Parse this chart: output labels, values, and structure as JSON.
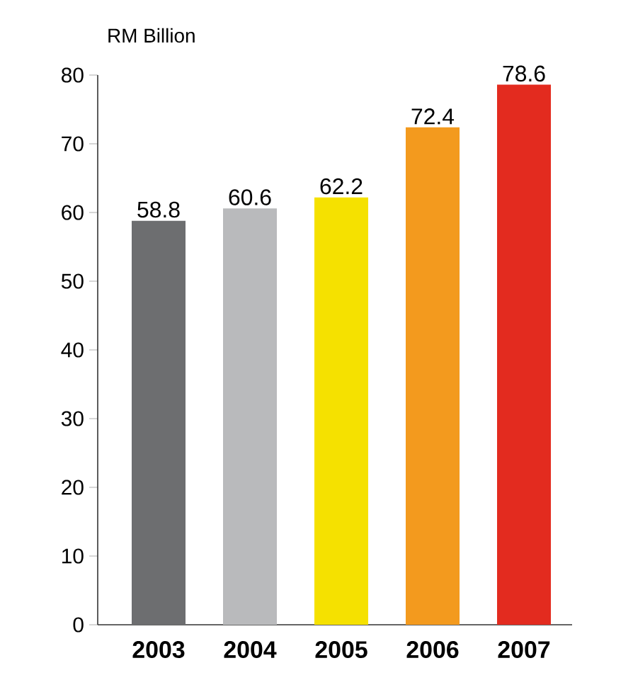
{
  "chart_data": {
    "type": "bar",
    "ylabel": "RM Billion",
    "categories": [
      "2003",
      "2004",
      "2005",
      "2006",
      "2007"
    ],
    "values": [
      58.8,
      60.6,
      62.2,
      72.4,
      78.6
    ],
    "colors": [
      "#6d6e70",
      "#b9babc",
      "#f5e100",
      "#f39a1e",
      "#e32b1f"
    ],
    "ylim": [
      0,
      80
    ],
    "yticks": [
      0,
      10,
      20,
      30,
      40,
      50,
      60,
      70,
      80
    ],
    "data_labels": true,
    "grid": false
  }
}
